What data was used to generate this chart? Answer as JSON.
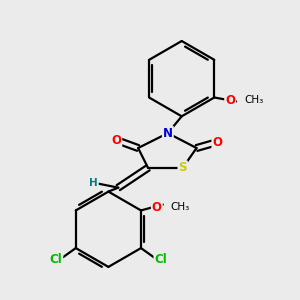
{
  "background_color": "#ebebeb",
  "bond_color": "#000000",
  "atom_colors": {
    "O": "#ff0000",
    "N": "#0000cd",
    "S": "#cccc00",
    "Cl": "#00bb00",
    "H": "#008080"
  },
  "bond_lw": 1.6,
  "font_size": 8.5,
  "ome_font_size": 7.5
}
